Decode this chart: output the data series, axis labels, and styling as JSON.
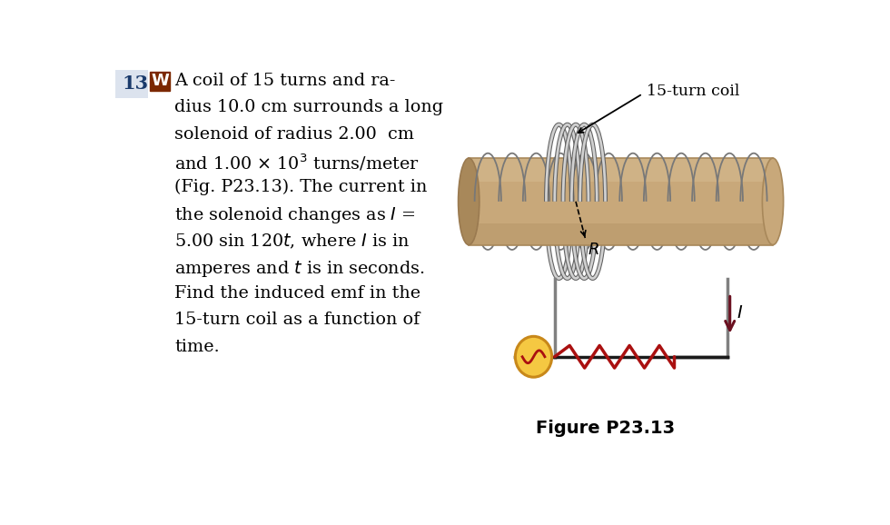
{
  "bg_color": "#ffffff",
  "problem_number": "13.",
  "w_box_color": "#7B2800",
  "num_color": "#1a3a6b",
  "num_bg": "#dde3ee",
  "solenoid_color": "#C8A87A",
  "solenoid_highlight": "#D9BF96",
  "solenoid_shadow": "#A8885A",
  "solenoid_edge": "#9A7A50",
  "coil_fill": "#D0D0D0",
  "coil_stroke": "#909090",
  "coil_stroke_dark": "#606060",
  "wire_color": "#808080",
  "circuit_color": "#1a1a1a",
  "source_fill": "#F5C842",
  "source_edge": "#C8881A",
  "source_wave_color": "#AA1010",
  "resistor_color": "#AA1010",
  "arrow_color": "#6B1020",
  "figure_caption": "Figure P23.13",
  "coil_label": "15-turn coil",
  "text_lines": [
    "A coil of 15 turns and ra-",
    "dius 10.0 cm surrounds a long",
    "solenoid of radius 2.00  cm",
    "and 1.00 × 10³ turns/meter",
    "(Fig. P23.13). The current in",
    "the solenoid changes as I  =",
    "5.00 sin 120t, where I  is in",
    "amperes and t  is in seconds.",
    "Find the induced emf in the",
    "15-turn coil as a function of",
    "time."
  ]
}
